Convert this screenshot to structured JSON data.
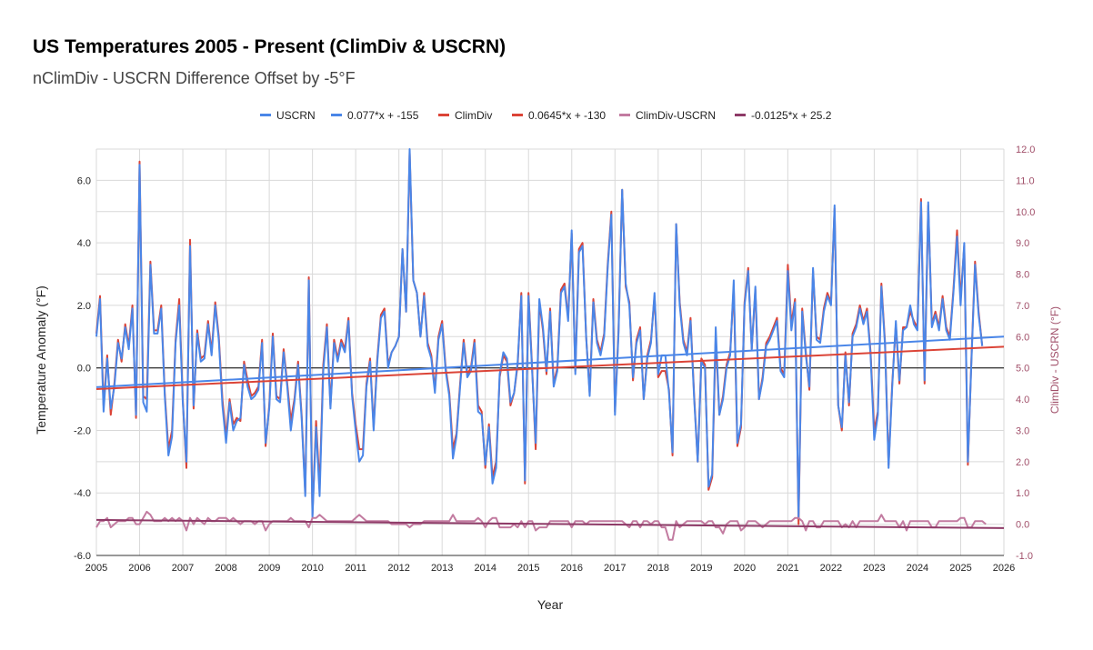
{
  "chart_data": {
    "type": "line",
    "title": "US Temperatures 2005 - Present (ClimDiv & USCRN)",
    "subtitle": "nClimDiv - USCRN Difference Offset by -5°F",
    "xlabel": "Year",
    "ylabel": "Temperature Anomaly (°F)",
    "y2label": "ClimDiv - USCRN (°F)",
    "xlim": [
      2005,
      2026
    ],
    "ylim": [
      -6,
      7
    ],
    "y2lim": [
      -1,
      12
    ],
    "x_ticks": [
      "2005",
      "2006",
      "2007",
      "2008",
      "2009",
      "2010",
      "2011",
      "2012",
      "2013",
      "2014",
      "2015",
      "2016",
      "2017",
      "2018",
      "2019",
      "2020",
      "2021",
      "2022",
      "2023",
      "2024",
      "2025",
      "2026"
    ],
    "y_ticks": [
      "-6.0",
      "-4.0",
      "-2.0",
      "0.0",
      "2.0",
      "4.0",
      "6.0"
    ],
    "y2_ticks": [
      "-1.0",
      "0.0",
      "1.0",
      "2.0",
      "3.0",
      "4.0",
      "5.0",
      "6.0",
      "7.0",
      "8.0",
      "9.0",
      "10.0",
      "11.0",
      "12.0"
    ],
    "grid": true,
    "legend_position": "top",
    "colors": {
      "uscrn": "#4a86e8",
      "climdiv": "#db4437",
      "diff": "#c27ba0",
      "diff_trend": "#8e3a67",
      "grid": "#d9d9d9",
      "zero_line": "#000000"
    },
    "legend": [
      {
        "label": "USCRN",
        "color": "#4a86e8"
      },
      {
        "label": "0.077*x + -155",
        "color": "#4a86e8"
      },
      {
        "label": "ClimDiv",
        "color": "#db4437"
      },
      {
        "label": "0.0645*x + -130",
        "color": "#db4437"
      },
      {
        "label": "ClimDiv-USCRN",
        "color": "#c27ba0"
      },
      {
        "label": "-0.0125*x + 25.2",
        "color": "#8e3a67"
      }
    ],
    "trendlines": [
      {
        "name": "0.077*x + -155",
        "slope": 0.077,
        "intercept": -155,
        "axis": "left",
        "color": "#4a86e8"
      },
      {
        "name": "0.0645*x + -130",
        "slope": 0.0645,
        "intercept": -130,
        "axis": "left",
        "color": "#db4437"
      },
      {
        "name": "-0.0125*x + 25.2",
        "slope": -0.0125,
        "intercept": 25.2,
        "axis": "right",
        "color": "#8e3a67"
      }
    ],
    "series": [
      {
        "name": "ClimDiv",
        "axis": "left",
        "color": "#db4437",
        "x_start": 2005.0,
        "x_step": 0.08333,
        "values": [
          1.1,
          2.3,
          -1.2,
          0.4,
          -1.5,
          -0.5,
          0.9,
          0.2,
          1.4,
          0.7,
          2.0,
          -1.6,
          6.6,
          -0.9,
          -1.0,
          3.4,
          1.2,
          1.2,
          2.0,
          -0.8,
          -2.6,
          -2.0,
          0.9,
          2.2,
          -1.0,
          -3.2,
          4.1,
          -1.3,
          1.2,
          0.3,
          0.4,
          1.5,
          0.5,
          2.1,
          1.0,
          -1.0,
          -2.2,
          -1.0,
          -1.8,
          -1.6,
          -1.7,
          0.2,
          -0.4,
          -0.9,
          -0.8,
          -0.6,
          0.9,
          -2.5,
          -1.2,
          1.1,
          -0.9,
          -1.0,
          0.6,
          -0.5,
          -1.7,
          -1.0,
          0.2,
          -1.5,
          -4.0,
          2.9,
          -4.7,
          -1.7,
          -3.8,
          0.1,
          1.4,
          -1.2,
          0.9,
          0.3,
          0.9,
          0.6,
          1.6,
          -0.8,
          -1.8,
          -2.6,
          -2.6,
          -0.5,
          0.3,
          -1.9,
          0.3,
          1.7,
          1.9,
          0.1,
          0.5,
          0.7,
          1.0,
          3.8,
          1.8,
          6.9,
          2.8,
          2.4,
          1.0,
          2.4,
          0.8,
          0.4,
          -0.7,
          1.0,
          1.5,
          0.0,
          -0.8,
          -2.6,
          -2.1,
          -0.5,
          0.9,
          -0.2,
          0.0,
          0.9,
          -1.2,
          -1.4,
          -3.2,
          -1.8,
          -3.5,
          -3.0,
          -0.3,
          0.4,
          0.2,
          -1.2,
          -0.8,
          0.1,
          2.4,
          -3.7,
          2.4,
          0.0,
          -2.6,
          2.1,
          1.2,
          -0.2,
          1.9,
          -0.5,
          0.0,
          2.5,
          2.7,
          1.6,
          4.3,
          -0.1,
          3.8,
          4.0,
          1.0,
          -0.8,
          2.2,
          0.9,
          0.5,
          1.1,
          3.3,
          5.0,
          -1.4,
          1.2,
          5.7,
          2.6,
          2.1,
          -0.4,
          0.9,
          1.3,
          -1.0,
          0.4,
          0.9,
          2.3,
          -0.3,
          -0.1,
          -0.1,
          -0.7,
          -2.8,
          4.6,
          2.1,
          0.9,
          0.5,
          1.6,
          -0.9,
          -3.0,
          0.3,
          0.1,
          -3.9,
          -3.5,
          1.0,
          -1.5,
          -0.9,
          0.1,
          0.5,
          2.6,
          -2.5,
          -1.9,
          2.1,
          3.2,
          0.6,
          2.5,
          -1.0,
          -0.3,
          0.8,
          1.0,
          1.3,
          1.6,
          0.0,
          -0.2,
          3.3,
          1.4,
          2.2,
          -5.0,
          1.9,
          0.5,
          -0.7,
          3.1,
          1.0,
          0.9,
          1.9,
          2.4,
          2.1,
          5.1,
          -1.2,
          -2.0,
          0.5,
          -1.2,
          1.1,
          1.4,
          2.0,
          1.5,
          1.9,
          0.5,
          -2.0,
          -1.4,
          2.7,
          0.8,
          -3.1,
          -0.5,
          1.4,
          -0.5,
          1.3,
          1.3,
          1.8,
          1.5,
          1.3,
          5.4,
          -0.5,
          5.2,
          1.4,
          1.8,
          1.3,
          2.3,
          1.3,
          1.0,
          2.5,
          4.4,
          2.2,
          3.9,
          -3.1,
          0.3,
          3.4,
          1.8,
          0.7
        ]
      },
      {
        "name": "USCRN",
        "axis": "left",
        "color": "#4a86e8",
        "x_start": 2005.0,
        "x_step": 0.08333,
        "values": [
          1.0,
          2.2,
          -1.4,
          0.3,
          -1.3,
          -0.6,
          0.8,
          0.3,
          1.3,
          0.6,
          1.9,
          -1.5,
          6.5,
          -1.1,
          -1.4,
          3.3,
          1.1,
          1.1,
          1.9,
          -0.9,
          -2.8,
          -2.2,
          0.8,
          2.0,
          -1.1,
          -3.0,
          3.9,
          -1.2,
          1.1,
          0.2,
          0.3,
          1.4,
          0.4,
          2.0,
          0.9,
          -1.2,
          -2.4,
          -1.1,
          -2.0,
          -1.7,
          -1.6,
          0.1,
          -0.6,
          -1.0,
          -0.9,
          -0.7,
          0.8,
          -2.4,
          -1.3,
          1.0,
          -1.0,
          -1.1,
          0.5,
          -0.6,
          -2.0,
          -1.1,
          0.1,
          -1.6,
          -4.1,
          2.8,
          -4.8,
          -1.9,
          -4.1,
          -0.1,
          1.3,
          -1.3,
          0.8,
          0.2,
          0.8,
          0.5,
          1.5,
          -0.9,
          -2.0,
          -3.0,
          -2.8,
          -0.6,
          0.2,
          -2.0,
          0.2,
          1.6,
          1.8,
          0.0,
          0.5,
          0.7,
          1.0,
          3.8,
          1.8,
          7.0,
          2.8,
          2.4,
          1.0,
          2.3,
          0.7,
          0.3,
          -0.8,
          0.9,
          1.4,
          -0.1,
          -0.9,
          -2.9,
          -2.2,
          -0.6,
          0.8,
          -0.3,
          -0.1,
          0.8,
          -1.4,
          -1.5,
          -3.1,
          -1.9,
          -3.7,
          -3.2,
          -0.2,
          0.5,
          0.3,
          -1.1,
          -0.8,
          0.2,
          2.3,
          -3.6,
          2.3,
          -0.1,
          -2.4,
          2.2,
          1.3,
          -0.1,
          1.8,
          -0.6,
          -0.1,
          2.4,
          2.6,
          1.5,
          4.4,
          -0.2,
          3.7,
          3.9,
          1.0,
          -0.9,
          2.1,
          0.8,
          0.4,
          1.0,
          3.2,
          4.9,
          -1.5,
          1.1,
          5.7,
          2.7,
          2.0,
          -0.3,
          0.8,
          1.2,
          -1.0,
          0.3,
          0.8,
          2.4,
          -0.2,
          0.4,
          0.4,
          -0.8,
          -2.7,
          4.6,
          2.0,
          0.8,
          0.4,
          1.5,
          -1.0,
          -3.0,
          0.2,
          0.0,
          -3.8,
          -3.4,
          1.3,
          -1.5,
          -1.0,
          0.0,
          0.4,
          2.8,
          -2.4,
          -1.8,
          2.0,
          3.1,
          0.6,
          2.6,
          -1.0,
          -0.4,
          0.7,
          0.9,
          1.2,
          1.5,
          -0.1,
          -0.3,
          3.1,
          1.2,
          2.1,
          -4.8,
          1.8,
          0.4,
          -0.6,
          3.2,
          0.9,
          0.8,
          1.8,
          2.3,
          2.0,
          5.2,
          -1.2,
          -1.9,
          0.4,
          -1.1,
          1.0,
          1.3,
          1.9,
          1.4,
          1.8,
          0.4,
          -2.3,
          -1.5,
          2.6,
          0.7,
          -3.2,
          -0.6,
          1.5,
          -0.4,
          1.2,
          1.3,
          2.0,
          1.4,
          1.2,
          5.3,
          -0.4,
          5.3,
          1.3,
          1.7,
          1.2,
          2.2,
          1.2,
          0.9,
          2.4,
          4.2,
          2.0,
          4.0,
          -3.0,
          0.2,
          3.3,
          1.7,
          0.7
        ]
      },
      {
        "name": "ClimDiv-USCRN",
        "axis": "right",
        "color": "#c27ba0",
        "x_start": 2005.0,
        "x_step": 0.08333,
        "values": [
          -0.1,
          0.1,
          0.1,
          0.2,
          -0.1,
          0.0,
          0.1,
          0.1,
          0.1,
          0.2,
          0.2,
          0.0,
          0.0,
          0.2,
          0.4,
          0.3,
          0.1,
          0.1,
          0.1,
          0.2,
          0.1,
          0.2,
          0.1,
          0.2,
          0.1,
          -0.2,
          0.2,
          0.0,
          0.2,
          0.1,
          0.0,
          0.2,
          0.1,
          0.1,
          0.2,
          0.2,
          0.2,
          0.1,
          0.2,
          0.1,
          0.0,
          0.1,
          0.1,
          0.1,
          0.0,
          0.1,
          0.1,
          -0.2,
          0.0,
          0.1,
          0.1,
          0.1,
          0.1,
          0.1,
          0.2,
          0.1,
          0.1,
          0.1,
          0.1,
          -0.1,
          0.2,
          0.2,
          0.3,
          0.2,
          0.1,
          0.1,
          0.1,
          0.1,
          0.1,
          0.1,
          0.1,
          0.1,
          0.2,
          0.3,
          0.2,
          0.1,
          0.1,
          0.1,
          0.1,
          0.1,
          0.1,
          0.1,
          0.0,
          0.0,
          0.0,
          0.0,
          0.0,
          -0.1,
          0.0,
          0.0,
          0.0,
          0.1,
          0.1,
          0.1,
          0.1,
          0.1,
          0.1,
          0.1,
          0.1,
          0.3,
          0.1,
          0.1,
          0.1,
          0.1,
          0.1,
          0.1,
          0.2,
          0.1,
          -0.1,
          0.1,
          0.2,
          0.2,
          -0.1,
          -0.1,
          -0.1,
          -0.1,
          0.0,
          -0.1,
          0.1,
          -0.1,
          0.1,
          0.1,
          -0.2,
          -0.1,
          -0.1,
          -0.1,
          0.1,
          0.1,
          0.1,
          0.1,
          0.1,
          0.1,
          -0.1,
          0.1,
          0.1,
          0.1,
          0.0,
          0.1,
          0.1,
          0.1,
          0.1,
          0.1,
          0.1,
          0.1,
          0.1,
          0.1,
          0.1,
          0.0,
          -0.1,
          0.1,
          0.1,
          -0.1,
          0.1,
          0.1,
          0.0,
          0.1,
          0.1,
          -0.1,
          -0.1,
          -0.5,
          -0.5,
          0.1,
          -0.1,
          0.0,
          0.1,
          0.1,
          0.1,
          0.1,
          0.1,
          0.0,
          0.1,
          0.1,
          -0.1,
          -0.1,
          -0.3,
          0.0,
          0.1,
          0.1,
          0.1,
          -0.2,
          -0.1,
          0.1,
          0.1,
          0.1,
          0.0,
          -0.1,
          0.0,
          0.1,
          0.1,
          0.1,
          0.1,
          0.1,
          0.1,
          0.1,
          0.2,
          0.2,
          0.1,
          -0.2,
          0.1,
          0.1,
          -0.1,
          -0.1,
          0.1,
          0.1,
          0.1,
          0.1,
          0.1,
          -0.1,
          0.0,
          -0.1,
          0.1,
          -0.1,
          0.1,
          0.1,
          0.1,
          0.1,
          0.1,
          0.1,
          0.3,
          0.1,
          0.1,
          0.1,
          0.1,
          -0.1,
          0.1,
          -0.2,
          0.1,
          0.1,
          0.1,
          0.1,
          0.1,
          0.1,
          -0.1,
          -0.1,
          0.1,
          0.1,
          0.1,
          0.1,
          0.1,
          0.1,
          0.2,
          0.2,
          -0.1,
          -0.1,
          0.1,
          0.1,
          0.1,
          0.0
        ]
      }
    ]
  }
}
